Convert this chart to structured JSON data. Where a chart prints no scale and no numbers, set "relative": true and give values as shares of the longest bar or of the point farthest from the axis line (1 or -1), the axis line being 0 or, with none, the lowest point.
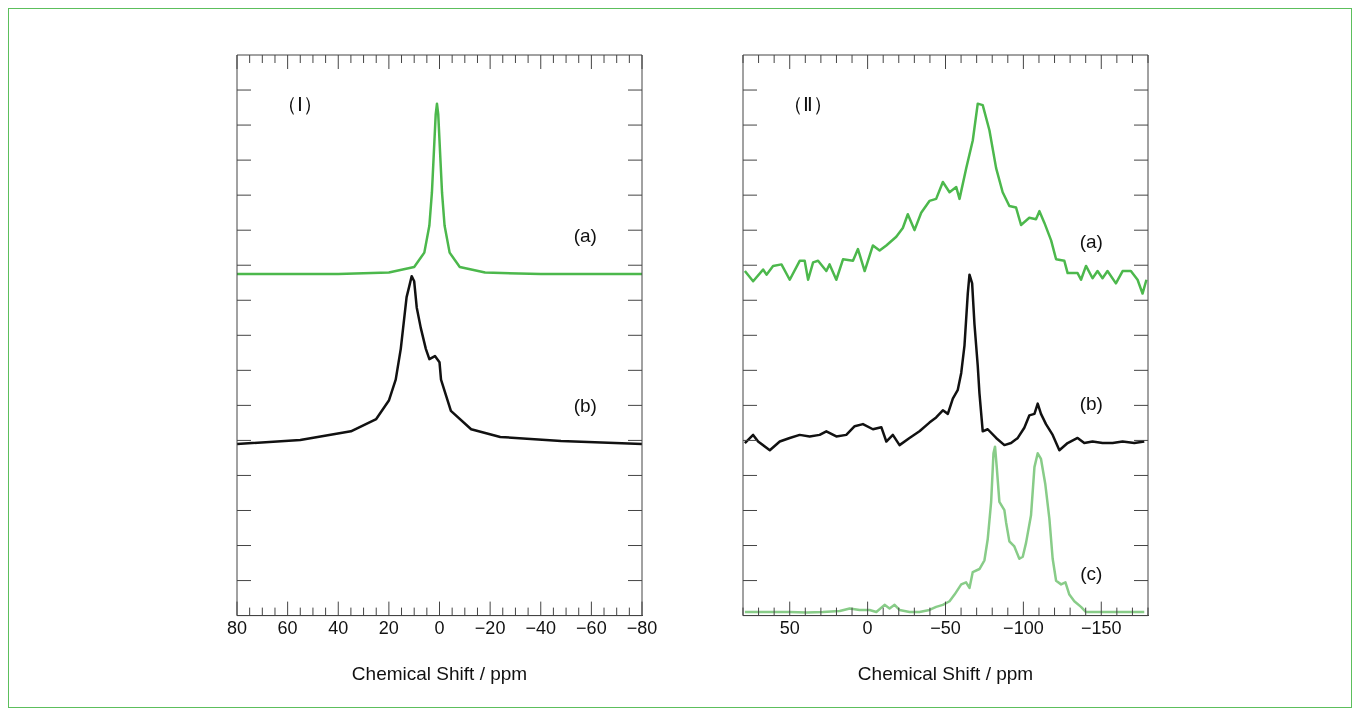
{
  "chart_data": [
    {
      "type": "line",
      "title": "（Ⅰ）",
      "xlabel": "Chemical Shift / ppm",
      "relative": true,
      "xlim": [
        80,
        -80
      ],
      "xticks": [
        {
          "value": 80,
          "label": "80"
        },
        {
          "value": 75,
          "label": null
        },
        {
          "value": 70,
          "label": null
        },
        {
          "value": 65,
          "label": null
        },
        {
          "value": 60,
          "label": "60"
        },
        {
          "value": 55,
          "label": null
        },
        {
          "value": 50,
          "label": null
        },
        {
          "value": 45,
          "label": null
        },
        {
          "value": 40,
          "label": "40"
        },
        {
          "value": 35,
          "label": null
        },
        {
          "value": 30,
          "label": null
        },
        {
          "value": 25,
          "label": null
        },
        {
          "value": 20,
          "label": "20"
        },
        {
          "value": 15,
          "label": null
        },
        {
          "value": 10,
          "label": null
        },
        {
          "value": 5,
          "label": null
        },
        {
          "value": 0,
          "label": "0"
        },
        {
          "value": -5,
          "label": null
        },
        {
          "value": -10,
          "label": null
        },
        {
          "value": -15,
          "label": null
        },
        {
          "value": -20,
          "label": "−20"
        },
        {
          "value": -25,
          "label": null
        },
        {
          "value": -30,
          "label": null
        },
        {
          "value": -35,
          "label": null
        },
        {
          "value": -40,
          "label": "−40"
        },
        {
          "value": -45,
          "label": null
        },
        {
          "value": -50,
          "label": null
        },
        {
          "value": -55,
          "label": null
        },
        {
          "value": -60,
          "label": "−60"
        },
        {
          "value": -65,
          "label": null
        },
        {
          "value": -70,
          "label": null
        },
        {
          "value": -75,
          "label": null
        },
        {
          "value": -80,
          "label": "−80"
        }
      ],
      "legend": false,
      "grid": false,
      "marker": "none",
      "line_style": "solid",
      "series": [
        {
          "name": "(a)",
          "color": "#4cb84c",
          "x": [
            80,
            40,
            20,
            10,
            6,
            4,
            3,
            2,
            1.5,
            1,
            0.5,
            0,
            -1,
            -2,
            -4,
            -8,
            -18,
            -40,
            -80
          ],
          "values": [
            0.667,
            0.667,
            0.67,
            0.681,
            0.709,
            0.762,
            0.826,
            0.928,
            0.979,
            1.0,
            0.979,
            0.928,
            0.826,
            0.762,
            0.709,
            0.681,
            0.67,
            0.667,
            0.667
          ]
        },
        {
          "name": "(b)",
          "color": "#111111",
          "x": [
            80,
            55,
            35,
            25,
            20,
            17.3,
            15.3,
            13,
            12,
            11,
            10,
            9,
            7.4,
            5.4,
            4,
            1.8,
            0,
            -0.6,
            -4.5,
            -12.5,
            -24,
            -48,
            -80
          ],
          "values": [
            0.335,
            0.343,
            0.36,
            0.384,
            0.42,
            0.461,
            0.521,
            0.622,
            0.642,
            0.663,
            0.653,
            0.602,
            0.562,
            0.521,
            0.501,
            0.507,
            0.495,
            0.461,
            0.4,
            0.364,
            0.349,
            0.341,
            0.335
          ]
        }
      ]
    },
    {
      "type": "line",
      "title": "（Ⅱ）",
      "xlabel": "Chemical Shift / ppm",
      "relative": true,
      "xlim": [
        80,
        -180
      ],
      "xticks": [
        {
          "value": 80,
          "label": null
        },
        {
          "value": 70,
          "label": null
        },
        {
          "value": 60,
          "label": null
        },
        {
          "value": 50,
          "label": "50"
        },
        {
          "value": 40,
          "label": null
        },
        {
          "value": 30,
          "label": null
        },
        {
          "value": 20,
          "label": null
        },
        {
          "value": 10,
          "label": null
        },
        {
          "value": 0,
          "label": "0"
        },
        {
          "value": -10,
          "label": null
        },
        {
          "value": -20,
          "label": null
        },
        {
          "value": -30,
          "label": null
        },
        {
          "value": -40,
          "label": null
        },
        {
          "value": -50,
          "label": "−50"
        },
        {
          "value": -60,
          "label": null
        },
        {
          "value": -70,
          "label": null
        },
        {
          "value": -80,
          "label": null
        },
        {
          "value": -90,
          "label": null
        },
        {
          "value": -100,
          "label": "−100"
        },
        {
          "value": -110,
          "label": null
        },
        {
          "value": -120,
          "label": null
        },
        {
          "value": -130,
          "label": null
        },
        {
          "value": -140,
          "label": null
        },
        {
          "value": -150,
          "label": "−150"
        },
        {
          "value": -160,
          "label": null
        },
        {
          "value": -170,
          "label": null
        },
        {
          "value": -180,
          "label": null
        }
      ],
      "legend": false,
      "grid": false,
      "marker": "none",
      "line_style": "solid",
      "series": [
        {
          "name": "(a)",
          "color": "#4cb84c",
          "x": [
            78.8,
            73.5,
            67.1,
            64.9,
            60.7,
            55.3,
            50.0,
            43.6,
            40.4,
            38.2,
            35.0,
            31.8,
            26.5,
            24.4,
            20.1,
            15.8,
            9.4,
            6.2,
            1.9,
            -3.4,
            -7.7,
            -12.0,
            -18.4,
            -22.6,
            -25.8,
            -30.1,
            -34.4,
            -39.7,
            -44.0,
            -48.3,
            -52.6,
            -56.9,
            -59.0,
            -63.3,
            -67.5,
            -70.7,
            -73.9,
            -78.2,
            -82.5,
            -86.7,
            -91.0,
            -95.3,
            -98.5,
            -103.8,
            -108.1,
            -110.3,
            -113.5,
            -117.8,
            -121.0,
            -126.3,
            -128.4,
            -134.8,
            -137.0,
            -140.2,
            -144.4,
            -147.6,
            -150.8,
            -154.0,
            -159.4,
            -163.7,
            -169.0,
            -173.3,
            -176.5,
            -179.0
          ],
          "values": [
            0.673,
            0.653,
            0.676,
            0.666,
            0.683,
            0.686,
            0.656,
            0.693,
            0.693,
            0.656,
            0.69,
            0.693,
            0.673,
            0.686,
            0.656,
            0.696,
            0.693,
            0.716,
            0.673,
            0.723,
            0.713,
            0.723,
            0.74,
            0.757,
            0.784,
            0.753,
            0.787,
            0.81,
            0.814,
            0.847,
            0.827,
            0.837,
            0.814,
            0.874,
            0.928,
            1.0,
            0.997,
            0.948,
            0.874,
            0.827,
            0.8,
            0.797,
            0.763,
            0.777,
            0.774,
            0.79,
            0.767,
            0.733,
            0.696,
            0.693,
            0.669,
            0.669,
            0.656,
            0.683,
            0.659,
            0.673,
            0.659,
            0.673,
            0.649,
            0.673,
            0.673,
            0.656,
            0.629,
            0.656
          ]
        },
        {
          "name": "(b)",
          "color": "#111111",
          "x": [
            78.8,
            73.5,
            70.3,
            62.8,
            56.4,
            50.0,
            43.6,
            37.2,
            30.8,
            26.5,
            20.1,
            13.7,
            8.3,
            3.0,
            -3.4,
            -8.8,
            -12.0,
            -16.2,
            -20.5,
            -26.9,
            -33.3,
            -39.7,
            -44.0,
            -48.3,
            -51.5,
            -54.7,
            -57.9,
            -60.1,
            -62.2,
            -64.3,
            -65.4,
            -67.1,
            -68.6,
            -70.7,
            -71.8,
            -73.9,
            -77.1,
            -82.5,
            -87.8,
            -92.1,
            -96.4,
            -100.6,
            -103.8,
            -107.1,
            -109.2,
            -111.3,
            -114.5,
            -118.8,
            -123.1,
            -128.4,
            -134.8,
            -139.1,
            -144.4,
            -150.8,
            -157.3,
            -163.7,
            -171.2,
            -177.6
          ],
          "values": [
            0.337,
            0.353,
            0.34,
            0.323,
            0.34,
            0.347,
            0.353,
            0.35,
            0.353,
            0.36,
            0.35,
            0.353,
            0.37,
            0.374,
            0.364,
            0.368,
            0.34,
            0.353,
            0.333,
            0.347,
            0.36,
            0.377,
            0.387,
            0.401,
            0.394,
            0.424,
            0.441,
            0.474,
            0.528,
            0.629,
            0.666,
            0.649,
            0.569,
            0.488,
            0.434,
            0.36,
            0.364,
            0.347,
            0.333,
            0.337,
            0.347,
            0.367,
            0.391,
            0.394,
            0.414,
            0.394,
            0.374,
            0.353,
            0.323,
            0.337,
            0.347,
            0.337,
            0.34,
            0.337,
            0.337,
            0.34,
            0.337,
            0.34
          ]
        },
        {
          "name": "(c)",
          "color": "#88cc88",
          "x": [
            78.8,
            69.2,
            60.7,
            50.0,
            39.3,
            28.6,
            17.9,
            11.5,
            5.1,
            -1.3,
            -5.6,
            -10.9,
            -14.1,
            -17.3,
            -20.5,
            -26.9,
            -33.3,
            -39.7,
            -44.0,
            -48.3,
            -52.6,
            -55.8,
            -60.1,
            -63.2,
            -65.4,
            -67.5,
            -71.8,
            -75.0,
            -77.1,
            -79.3,
            -80.8,
            -81.8,
            -82.9,
            -84.6,
            -87.8,
            -88.9,
            -91.0,
            -94.2,
            -97.4,
            -99.6,
            -101.7,
            -104.9,
            -107.1,
            -109.2,
            -111.3,
            -114.1,
            -116.7,
            -118.8,
            -121.0,
            -124.2,
            -127.0,
            -129.5,
            -132.7,
            -137.0,
            -140.2,
            -148.7,
            -159.4,
            -170.1,
            -177.6
          ],
          "values": [
            0.007,
            0.007,
            0.007,
            0.007,
            0.006,
            0.007,
            0.009,
            0.014,
            0.011,
            0.011,
            0.007,
            0.021,
            0.014,
            0.021,
            0.011,
            0.007,
            0.007,
            0.011,
            0.017,
            0.021,
            0.028,
            0.041,
            0.061,
            0.065,
            0.054,
            0.085,
            0.091,
            0.108,
            0.149,
            0.222,
            0.317,
            0.33,
            0.29,
            0.222,
            0.206,
            0.182,
            0.145,
            0.135,
            0.111,
            0.115,
            0.142,
            0.196,
            0.29,
            0.317,
            0.306,
            0.256,
            0.189,
            0.111,
            0.068,
            0.061,
            0.065,
            0.041,
            0.028,
            0.017,
            0.007,
            0.007,
            0.007,
            0.007,
            0.007
          ]
        }
      ]
    }
  ]
}
